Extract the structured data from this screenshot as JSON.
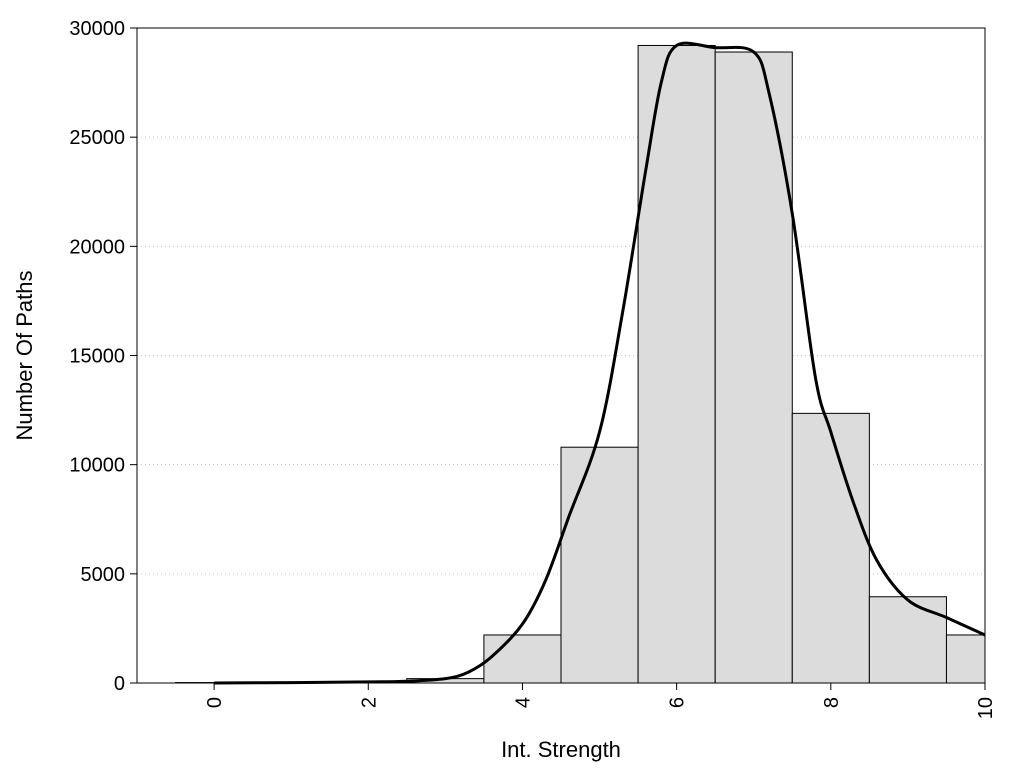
{
  "chart_data": {
    "type": "bar",
    "xlabel": "Int. Strength",
    "ylabel": "Number Of Paths",
    "xlim": [
      -1,
      10
    ],
    "ylim": [
      0,
      30000
    ],
    "xticks": [
      0,
      2,
      4,
      6,
      8,
      10
    ],
    "xtick_labels": [
      "0",
      "2",
      "4",
      "6",
      "8",
      "10"
    ],
    "yticks": [
      0,
      5000,
      10000,
      15000,
      20000,
      25000,
      30000
    ],
    "ytick_labels": [
      "0",
      "5000",
      "10000",
      "15000",
      "20000",
      "25000",
      "30000"
    ],
    "grid": "horizontal dotted",
    "bars": [
      {
        "x": 0,
        "value": 20
      },
      {
        "x": 1,
        "value": 30
      },
      {
        "x": 2,
        "value": 60
      },
      {
        "x": 3,
        "value": 200
      },
      {
        "x": 4,
        "value": 2200
      },
      {
        "x": 5,
        "value": 10800
      },
      {
        "x": 6,
        "value": 29200
      },
      {
        "x": 7,
        "value": 28900
      },
      {
        "x": 8,
        "value": 12350
      },
      {
        "x": 9,
        "value": 3950
      },
      {
        "x": 10,
        "value": 2200
      }
    ],
    "curve": {
      "x": [
        0,
        1,
        2,
        2.5,
        3,
        3.3,
        3.6,
        4,
        4.3,
        4.6,
        5,
        5.3,
        5.6,
        5.8,
        6,
        6.5,
        7,
        7.2,
        7.5,
        7.8,
        8,
        8.3,
        8.6,
        9,
        9.5,
        10
      ],
      "y": [
        0,
        20,
        50,
        80,
        200,
        500,
        1200,
        2700,
        4700,
        7600,
        11500,
        17000,
        23500,
        27500,
        29200,
        29100,
        28900,
        27000,
        21500,
        14000,
        11500,
        8200,
        5600,
        3800,
        3000,
        2200
      ]
    },
    "bar_fill": "#dcdcdc",
    "bar_stroke": "#000000",
    "curve_color": "#000000",
    "grid_color": "#c8c8c8"
  }
}
